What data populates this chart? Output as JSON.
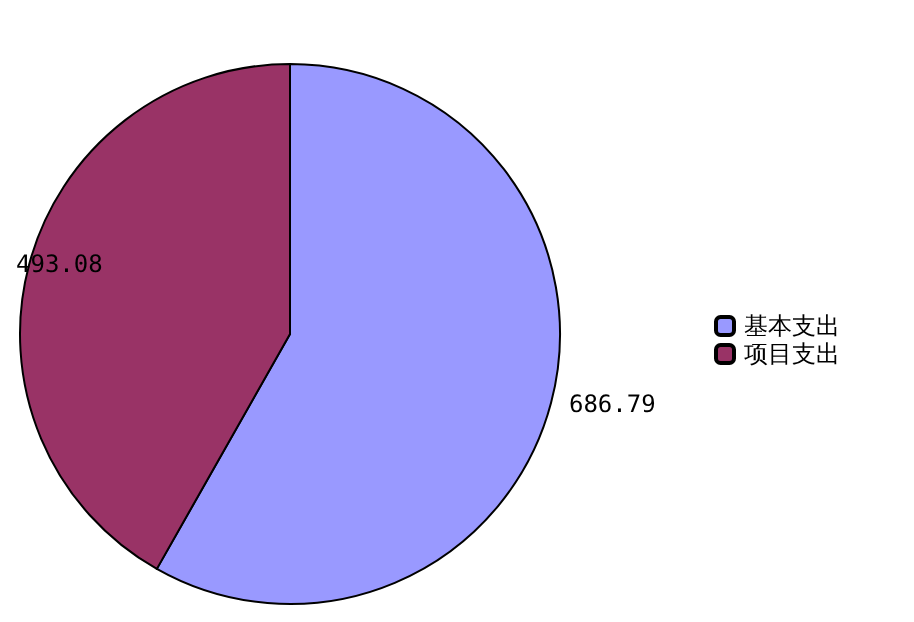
{
  "chart_data": {
    "type": "pie",
    "categories": [
      "基本支出",
      "项目支出"
    ],
    "values": [
      686.79,
      493.08
    ],
    "colors": [
      "#9999ff",
      "#993366"
    ],
    "data_labels": true,
    "legend": "right"
  }
}
